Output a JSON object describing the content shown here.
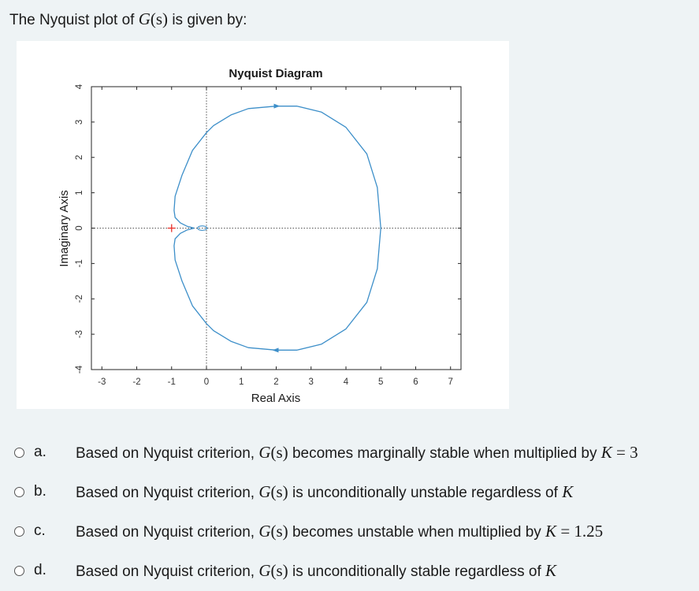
{
  "question": {
    "prefix": "The Nyquist plot of",
    "fn": "G",
    "arg": "(s)",
    "suffix": "is given by:"
  },
  "options": [
    {
      "letter": "a.",
      "pre": "Based on Nyquist criterion,",
      "fn": "G",
      "arg": "(s)",
      "post": "becomes marginally stable when multiplied by",
      "k": "K",
      "eq": "= 3"
    },
    {
      "letter": "b.",
      "pre": "Based on Nyquist criterion,",
      "fn": "G",
      "arg": "(s)",
      "post": "is unconditionally unstable regardless of",
      "k": "K",
      "eq": ""
    },
    {
      "letter": "c.",
      "pre": "Based on Nyquist criterion,",
      "fn": "G",
      "arg": "(s)",
      "post": "becomes unstable when multiplied by",
      "k": "K",
      "eq": "= 1.25"
    },
    {
      "letter": "d.",
      "pre": "Based on Nyquist criterion,",
      "fn": "G",
      "arg": "(s)",
      "post": "is unconditionally stable regardless of",
      "k": "K",
      "eq": ""
    }
  ],
  "chart_data": {
    "type": "line",
    "title": "Nyquist Diagram",
    "xlabel": "Real Axis",
    "ylabel": "Imaginary Axis",
    "xlim": [
      -3.3,
      7.3
    ],
    "ylim": [
      -4,
      4
    ],
    "xticks": [
      -3,
      -2,
      -1,
      0,
      1,
      2,
      3,
      4,
      5,
      6,
      7
    ],
    "yticks": [
      -4,
      -3,
      -2,
      -1,
      0,
      1,
      2,
      3,
      4
    ],
    "critical_point": {
      "x": -1,
      "y": 0
    },
    "series_color": "#3d8fc9",
    "critical_color": "#e8302a",
    "grid": false,
    "series": [
      {
        "x": [
          5.0,
          4.9,
          4.6,
          4.0,
          3.3,
          2.6,
          2.0,
          1.2,
          0.7,
          0.2,
          0.0,
          -0.4,
          -0.7,
          -0.9,
          -0.93,
          -0.9,
          -0.75,
          -0.55,
          -0.35
        ],
        "y": [
          0.0,
          1.15,
          2.1,
          2.85,
          3.28,
          3.45,
          3.45,
          3.38,
          3.2,
          2.9,
          2.7,
          2.2,
          1.5,
          0.9,
          0.5,
          0.3,
          0.15,
          0.05,
          0.0
        ]
      },
      {
        "x": [
          5.0,
          4.9,
          4.6,
          4.0,
          3.3,
          2.6,
          2.0,
          1.2,
          0.7,
          0.2,
          0.0,
          -0.4,
          -0.7,
          -0.9,
          -0.93,
          -0.9,
          -0.75,
          -0.55,
          -0.35
        ],
        "y": [
          0.0,
          -1.15,
          -2.1,
          -2.85,
          -3.28,
          -3.45,
          -3.45,
          -3.38,
          -3.2,
          -2.9,
          -2.7,
          -2.2,
          -1.5,
          -0.9,
          -0.5,
          -0.3,
          -0.15,
          -0.05,
          0.0
        ]
      }
    ]
  }
}
